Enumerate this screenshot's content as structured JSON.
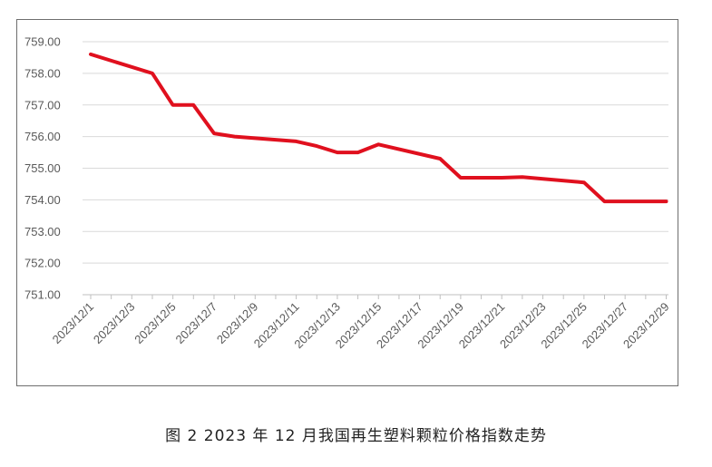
{
  "caption": "图 2  2023 年 12 月我国再生塑料颗粒价格指数走势",
  "chart_data": {
    "type": "line",
    "title": "",
    "xlabel": "",
    "ylabel": "",
    "ylim": [
      751.0,
      759.0
    ],
    "y_ticks": [
      "751.00",
      "752.00",
      "753.00",
      "754.00",
      "755.00",
      "756.00",
      "757.00",
      "758.00",
      "759.00"
    ],
    "x_ticks": [
      "2023/12/1",
      "2023/12/3",
      "2023/12/5",
      "2023/12/7",
      "2023/12/9",
      "2023/12/11",
      "2023/12/13",
      "2023/12/15",
      "2023/12/17",
      "2023/12/19",
      "2023/12/21",
      "2023/12/23",
      "2023/12/25",
      "2023/12/27",
      "2023/12/29"
    ],
    "grid": true,
    "line_color": "#e0101e",
    "series": [
      {
        "x": [
          "2023/12/1",
          "2023/12/4",
          "2023/12/5",
          "2023/12/6",
          "2023/12/7",
          "2023/12/8",
          "2023/12/11",
          "2023/12/12",
          "2023/12/13",
          "2023/12/14",
          "2023/12/15",
          "2023/12/18",
          "2023/12/19",
          "2023/12/20",
          "2023/12/21",
          "2023/12/22",
          "2023/12/25",
          "2023/12/26",
          "2023/12/27",
          "2023/12/28",
          "2023/12/29"
        ],
        "values": [
          758.6,
          758.0,
          757.0,
          757.0,
          756.1,
          756.0,
          755.85,
          755.7,
          755.5,
          755.5,
          755.75,
          755.3,
          754.7,
          754.7,
          754.7,
          754.72,
          754.55,
          753.95,
          753.95,
          753.95,
          753.95
        ]
      }
    ]
  }
}
